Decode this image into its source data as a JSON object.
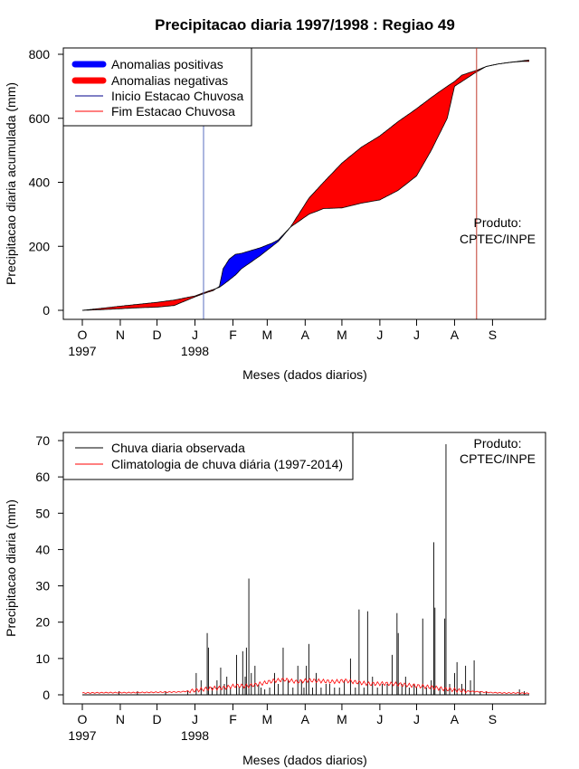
{
  "chart_data": [
    {
      "type": "area",
      "title": "Precipitacao diaria 1997/1998 : Regiao 49",
      "xlabel": "Meses (dados diarios)",
      "ylabel": "Precipitacao diaria acumulada (mm)",
      "ylim": [
        0,
        800
      ],
      "yticks": [
        0,
        200,
        400,
        600,
        800
      ],
      "month_labels": [
        "O",
        "N",
        "D",
        "J",
        "F",
        "M",
        "A",
        "M",
        "J",
        "J",
        "A",
        "S"
      ],
      "year_labels": [
        {
          "month_index": 0,
          "label": "1997"
        },
        {
          "month_index": 3,
          "label": "1998"
        }
      ],
      "month_day_offsets": [
        0,
        31,
        61,
        92,
        123,
        151,
        182,
        212,
        243,
        273,
        304,
        335,
        365
      ],
      "legend": {
        "position": "top-left",
        "items": [
          {
            "label": "Anomalias positivas",
            "color": "#0000ff",
            "style": "thick"
          },
          {
            "label": "Anomalias negativas",
            "color": "#ff0000",
            "style": "thick"
          },
          {
            "label": "Inicio Estacao Chuvosa",
            "color": "#00008b",
            "style": "thin"
          },
          {
            "label": "Fim Estacao Chuvosa",
            "color": "#ff0000",
            "style": "thin"
          }
        ]
      },
      "annotation": [
        "Produto:",
        "CPTEC/INPE"
      ],
      "rainy_season_start_day": 99,
      "rainy_season_end_day": 322,
      "colors": {
        "positive": "#0000ff",
        "negative": "#ff0000",
        "start_line": "#5a6fc0",
        "end_line": "#c0392b"
      },
      "day": [
        0,
        15,
        31,
        46,
        61,
        75,
        92,
        99,
        107,
        112,
        115,
        120,
        125,
        130,
        145,
        155,
        160,
        170,
        185,
        197,
        212,
        228,
        243,
        258,
        273,
        285,
        298,
        304,
        310,
        322,
        330,
        340,
        350,
        360,
        365
      ],
      "observed_cumulative": [
        0,
        2,
        5,
        8,
        10,
        15,
        42,
        52,
        62,
        75,
        130,
        160,
        175,
        178,
        195,
        210,
        220,
        260,
        300,
        318,
        320,
        335,
        345,
        375,
        420,
        500,
        600,
        700,
        715,
        745,
        762,
        770,
        775,
        778,
        778
      ],
      "climatology_cumulative": [
        0,
        6,
        13,
        19,
        25,
        32,
        45,
        55,
        65,
        72,
        80,
        95,
        110,
        130,
        170,
        200,
        215,
        260,
        350,
        400,
        460,
        510,
        545,
        590,
        630,
        665,
        700,
        715,
        735,
        750,
        762,
        770,
        775,
        780,
        782
      ]
    },
    {
      "type": "line",
      "xlabel": "Meses (dados diarios)",
      "ylabel": "Precipitacao diaria (mm)",
      "ylim": [
        0,
        70
      ],
      "yticks": [
        0,
        10,
        20,
        30,
        40,
        50,
        60,
        70
      ],
      "month_labels": [
        "O",
        "N",
        "D",
        "J",
        "F",
        "M",
        "A",
        "M",
        "J",
        "J",
        "A",
        "S"
      ],
      "year_labels": [
        {
          "month_index": 0,
          "label": "1997"
        },
        {
          "month_index": 3,
          "label": "1998"
        }
      ],
      "legend": {
        "position": "top-left",
        "items": [
          {
            "label": "Chuva diaria observada",
            "color": "#000000"
          },
          {
            "label": "Climatologia de chuva diária (1997-2014)",
            "color": "#ff0000"
          }
        ]
      },
      "annotation": [
        "Produto:",
        "CPTEC/INPE"
      ],
      "observed_daily_peaks": [
        [
          30,
          1
        ],
        [
          45,
          1
        ],
        [
          68,
          1
        ],
        [
          86,
          1
        ],
        [
          93,
          6
        ],
        [
          97,
          4
        ],
        [
          102,
          17
        ],
        [
          103,
          13
        ],
        [
          106,
          2
        ],
        [
          110,
          4
        ],
        [
          113,
          7.5
        ],
        [
          116,
          3
        ],
        [
          118,
          5
        ],
        [
          121,
          2
        ],
        [
          126,
          11
        ],
        [
          128,
          2
        ],
        [
          131,
          12
        ],
        [
          133,
          5
        ],
        [
          134,
          13
        ],
        [
          136,
          32
        ],
        [
          138,
          6
        ],
        [
          141,
          8
        ],
        [
          144,
          3
        ],
        [
          146,
          2
        ],
        [
          149,
          1.5
        ],
        [
          153,
          2
        ],
        [
          157,
          6
        ],
        [
          160,
          3
        ],
        [
          164,
          13
        ],
        [
          168,
          4
        ],
        [
          172,
          2
        ],
        [
          176,
          8
        ],
        [
          179,
          4
        ],
        [
          181,
          2
        ],
        [
          183,
          8
        ],
        [
          185,
          14
        ],
        [
          188,
          2
        ],
        [
          191,
          6
        ],
        [
          195,
          2
        ],
        [
          199,
          3
        ],
        [
          202,
          3
        ],
        [
          206,
          2
        ],
        [
          210,
          2
        ],
        [
          214,
          4
        ],
        [
          219,
          10
        ],
        [
          223,
          2
        ],
        [
          226,
          23.5
        ],
        [
          230,
          2
        ],
        [
          233,
          23
        ],
        [
          237,
          5
        ],
        [
          241,
          2
        ],
        [
          245,
          3
        ],
        [
          249,
          3
        ],
        [
          253,
          11
        ],
        [
          257,
          22.5
        ],
        [
          258,
          17
        ],
        [
          261,
          3
        ],
        [
          264,
          5
        ],
        [
          267,
          2
        ],
        [
          271,
          3
        ],
        [
          273,
          2
        ],
        [
          278,
          21
        ],
        [
          281,
          2
        ],
        [
          285,
          4
        ],
        [
          287,
          42
        ],
        [
          288,
          24
        ],
        [
          292,
          2
        ],
        [
          296,
          21
        ],
        [
          297,
          69
        ],
        [
          300,
          3
        ],
        [
          304,
          6
        ],
        [
          306,
          9
        ],
        [
          310,
          3
        ],
        [
          313,
          8
        ],
        [
          317,
          4
        ],
        [
          320,
          9.5
        ],
        [
          325,
          1
        ],
        [
          330,
          1
        ],
        [
          357,
          1.5
        ],
        [
          361,
          1
        ]
      ],
      "climatology_daily": [
        [
          0,
          0.5
        ],
        [
          20,
          0.6
        ],
        [
          40,
          0.6
        ],
        [
          60,
          0.7
        ],
        [
          80,
          0.8
        ],
        [
          92,
          1.2
        ],
        [
          105,
          1.8
        ],
        [
          115,
          1.9
        ],
        [
          125,
          2.5
        ],
        [
          135,
          2.4
        ],
        [
          145,
          3.0
        ],
        [
          155,
          3.8
        ],
        [
          165,
          4.2
        ],
        [
          175,
          3.6
        ],
        [
          185,
          4.0
        ],
        [
          195,
          3.8
        ],
        [
          205,
          3.6
        ],
        [
          215,
          3.9
        ],
        [
          225,
          3.4
        ],
        [
          235,
          3.0
        ],
        [
          245,
          3.1
        ],
        [
          255,
          3.0
        ],
        [
          265,
          2.7
        ],
        [
          275,
          2.4
        ],
        [
          285,
          2.1
        ],
        [
          295,
          1.6
        ],
        [
          305,
          1.3
        ],
        [
          315,
          1.0
        ],
        [
          325,
          0.8
        ],
        [
          335,
          0.6
        ],
        [
          345,
          0.5
        ],
        [
          355,
          0.5
        ],
        [
          365,
          0.4
        ]
      ]
    }
  ]
}
